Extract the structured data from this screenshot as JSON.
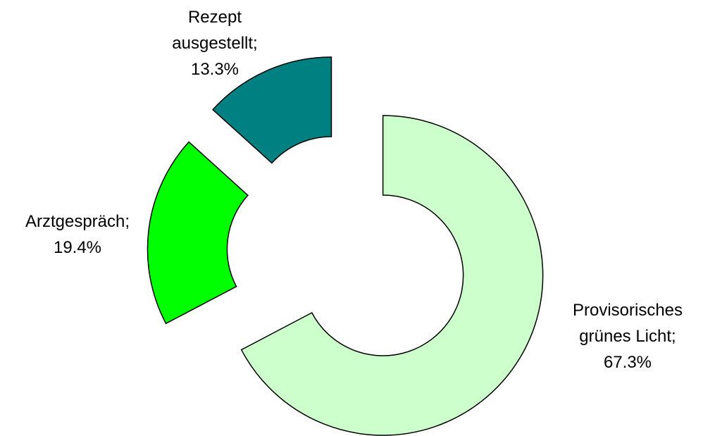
{
  "chart_data": {
    "type": "donut",
    "categories": [
      "Provisorisches grünes Licht",
      "Arztgespräch",
      "Rezept ausgestellt"
    ],
    "values": [
      67.3,
      19.4,
      13.3
    ],
    "value_labels": [
      "67.3%",
      "19.4%",
      "13.3%"
    ],
    "label_separator": ";",
    "colors": [
      "#ccffcc",
      "#00ff00",
      "#008080"
    ]
  }
}
